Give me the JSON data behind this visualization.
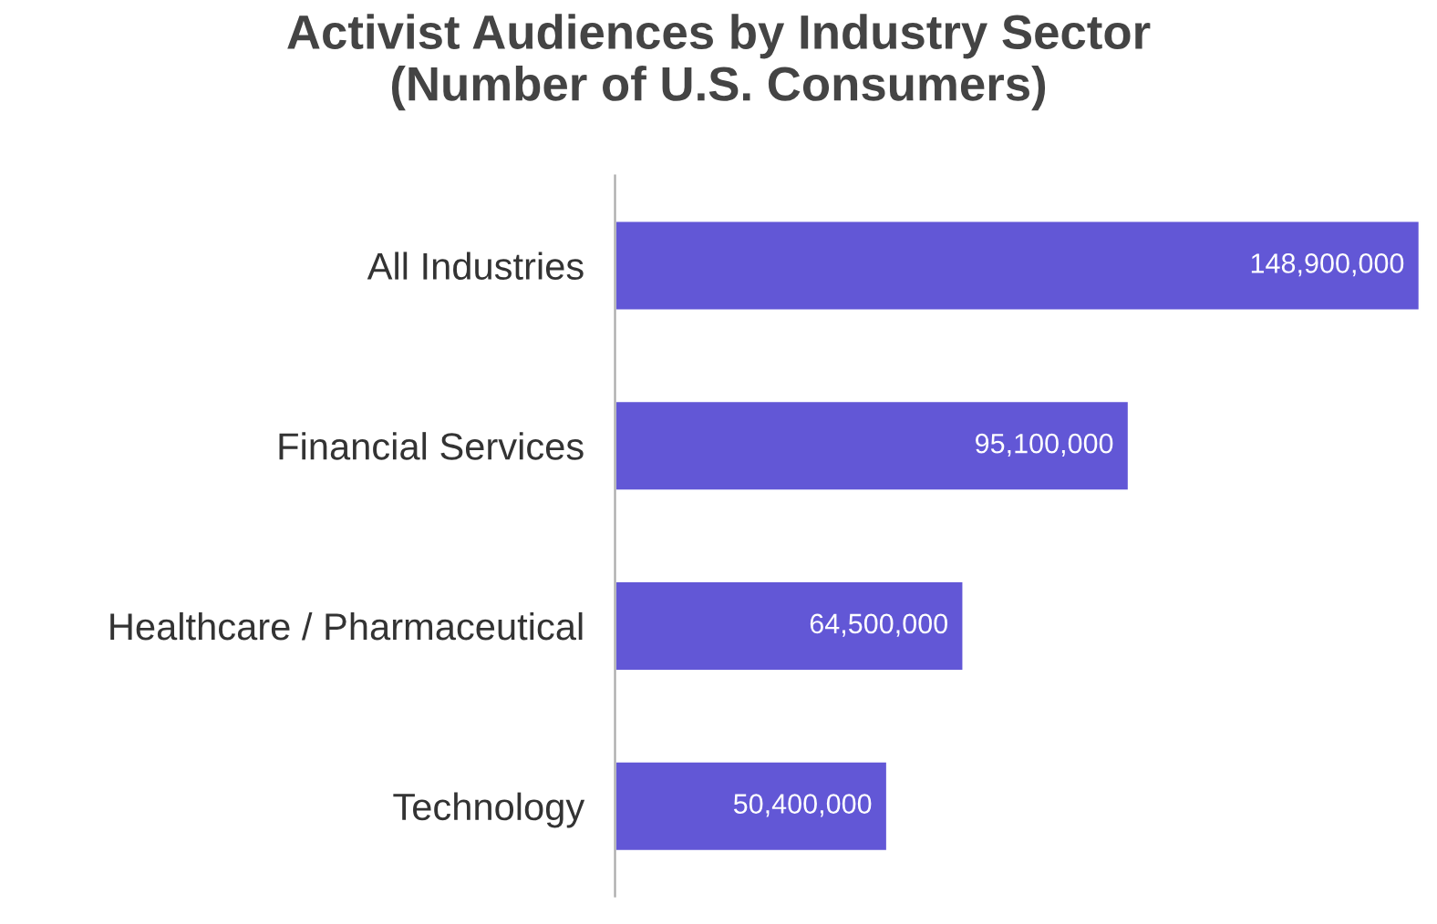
{
  "chart_data": {
    "type": "bar",
    "orientation": "horizontal",
    "title": "Activist Audiences by Industry Sector\n(Number of U.S. Consumers)",
    "categories": [
      "All Industries",
      "Financial Services",
      "Healthcare / Pharmaceutical",
      "Technology"
    ],
    "values": [
      148900000,
      95100000,
      64500000,
      50400000
    ],
    "color": "#6257d6",
    "data_labels": true,
    "value_labels": [
      "148,900,000",
      "95,100,000",
      "64,500,000",
      "50,400,000"
    ],
    "grid": false,
    "legend": false
  }
}
